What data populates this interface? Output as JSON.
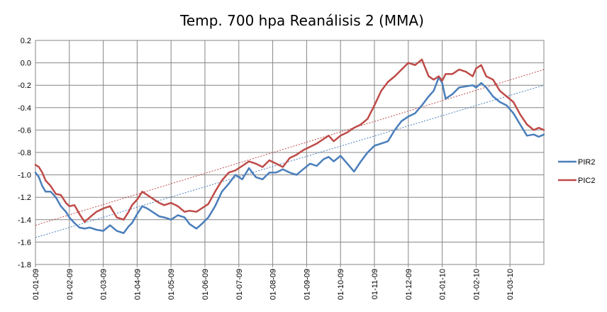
{
  "chart_data": {
    "type": "line",
    "title": "Temp. 700 hpa Reanálisis 2 (MMA)",
    "xlabel": "",
    "ylabel": "",
    "ylim": [
      -1.8,
      0.2
    ],
    "y_ticks": [
      "0.2",
      "0.0",
      "-0.2",
      "-0.4",
      "-0.6",
      "-0.8",
      "-1.0",
      "-1.2",
      "-1.4",
      "-1.6",
      "-1.8"
    ],
    "x_tick_labels": [
      "01-01-09",
      "01-02-09",
      "01-03-09",
      "01-04-09",
      "01-05-09",
      "01-06-09",
      "01-07-09",
      "01-08-09",
      "01-09-09",
      "01-10-09",
      "01-11-09",
      "01-12-09",
      "01-01-10",
      "01-02-10",
      "01-03-10"
    ],
    "x_range_months": [
      0,
      15
    ],
    "grid": true,
    "legend_position": "right",
    "colors": {
      "PIR2": "#4A7EBB",
      "PIC2": "#BE4B48"
    },
    "series": [
      {
        "name": "PIR2",
        "color": "#4A7EBB",
        "x": [
          0,
          0.1,
          0.2,
          0.3,
          0.45,
          0.6,
          0.75,
          0.9,
          1.0,
          1.15,
          1.3,
          1.45,
          1.6,
          1.8,
          2.0,
          2.2,
          2.4,
          2.6,
          2.75,
          2.85,
          3.0,
          3.15,
          3.3,
          3.5,
          3.65,
          3.8,
          4.0,
          4.2,
          4.4,
          4.55,
          4.75,
          4.9,
          5.1,
          5.3,
          5.5,
          5.7,
          5.9,
          6.1,
          6.3,
          6.5,
          6.7,
          6.9,
          7.1,
          7.3,
          7.5,
          7.7,
          7.9,
          8.1,
          8.3,
          8.5,
          8.65,
          8.8,
          9.0,
          9.2,
          9.4,
          9.6,
          9.8,
          10.0,
          10.2,
          10.4,
          10.6,
          10.8,
          11.0,
          11.2,
          11.4,
          11.6,
          11.75,
          11.9,
          12.0,
          12.1,
          12.3,
          12.5,
          12.7,
          12.9,
          13.0,
          13.15,
          13.3,
          13.5,
          13.7,
          13.9,
          14.1,
          14.3,
          14.5,
          14.7,
          14.85,
          15.0
        ],
        "values": [
          -0.98,
          -1.02,
          -1.1,
          -1.15,
          -1.15,
          -1.2,
          -1.28,
          -1.33,
          -1.38,
          -1.43,
          -1.47,
          -1.48,
          -1.47,
          -1.49,
          -1.5,
          -1.45,
          -1.5,
          -1.52,
          -1.46,
          -1.43,
          -1.35,
          -1.28,
          -1.3,
          -1.34,
          -1.37,
          -1.38,
          -1.4,
          -1.36,
          -1.38,
          -1.44,
          -1.48,
          -1.44,
          -1.38,
          -1.28,
          -1.15,
          -1.08,
          -1.0,
          -1.04,
          -0.94,
          -1.02,
          -1.04,
          -0.98,
          -0.98,
          -0.95,
          -0.98,
          -1.0,
          -0.95,
          -0.9,
          -0.92,
          -0.86,
          -0.84,
          -0.88,
          -0.83,
          -0.9,
          -0.97,
          -0.88,
          -0.8,
          -0.74,
          -0.72,
          -0.7,
          -0.6,
          -0.52,
          -0.48,
          -0.45,
          -0.38,
          -0.3,
          -0.25,
          -0.13,
          -0.18,
          -0.32,
          -0.28,
          -0.22,
          -0.21,
          -0.2,
          -0.22,
          -0.18,
          -0.22,
          -0.3,
          -0.35,
          -0.38,
          -0.45,
          -0.55,
          -0.65,
          -0.64,
          -0.66,
          -0.64
        ],
        "trend": [
          -1.56,
          -0.2
        ]
      },
      {
        "name": "PIC2",
        "color": "#BE4B48",
        "x": [
          0,
          0.1,
          0.2,
          0.3,
          0.45,
          0.6,
          0.75,
          0.9,
          1.0,
          1.15,
          1.3,
          1.45,
          1.6,
          1.8,
          2.0,
          2.2,
          2.4,
          2.6,
          2.75,
          2.85,
          3.0,
          3.15,
          3.3,
          3.5,
          3.65,
          3.8,
          4.0,
          4.2,
          4.4,
          4.55,
          4.75,
          4.9,
          5.1,
          5.3,
          5.5,
          5.7,
          5.9,
          6.1,
          6.3,
          6.5,
          6.7,
          6.9,
          7.1,
          7.3,
          7.5,
          7.7,
          7.9,
          8.1,
          8.3,
          8.5,
          8.65,
          8.8,
          9.0,
          9.2,
          9.4,
          9.6,
          9.8,
          10.0,
          10.2,
          10.4,
          10.6,
          10.8,
          11.0,
          11.2,
          11.4,
          11.6,
          11.75,
          11.9,
          12.0,
          12.1,
          12.3,
          12.5,
          12.7,
          12.9,
          13.0,
          13.15,
          13.3,
          13.5,
          13.7,
          13.9,
          14.1,
          14.3,
          14.5,
          14.7,
          14.85,
          15.0
        ],
        "values": [
          -0.91,
          -0.93,
          -0.98,
          -1.05,
          -1.1,
          -1.17,
          -1.18,
          -1.25,
          -1.28,
          -1.27,
          -1.35,
          -1.42,
          -1.38,
          -1.33,
          -1.3,
          -1.28,
          -1.38,
          -1.4,
          -1.33,
          -1.27,
          -1.22,
          -1.15,
          -1.18,
          -1.22,
          -1.25,
          -1.27,
          -1.25,
          -1.28,
          -1.33,
          -1.32,
          -1.33,
          -1.3,
          -1.26,
          -1.15,
          -1.05,
          -0.98,
          -0.96,
          -0.92,
          -0.88,
          -0.9,
          -0.93,
          -0.87,
          -0.9,
          -0.93,
          -0.85,
          -0.82,
          -0.78,
          -0.75,
          -0.72,
          -0.68,
          -0.65,
          -0.7,
          -0.65,
          -0.62,
          -0.58,
          -0.55,
          -0.5,
          -0.38,
          -0.25,
          -0.17,
          -0.12,
          -0.06,
          0.0,
          -0.02,
          0.03,
          -0.12,
          -0.15,
          -0.12,
          -0.16,
          -0.1,
          -0.1,
          -0.06,
          -0.08,
          -0.12,
          -0.05,
          -0.02,
          -0.12,
          -0.15,
          -0.25,
          -0.3,
          -0.35,
          -0.46,
          -0.55,
          -0.6,
          -0.58,
          -0.6
        ],
        "trend": [
          -1.45,
          -0.06
        ]
      }
    ]
  }
}
